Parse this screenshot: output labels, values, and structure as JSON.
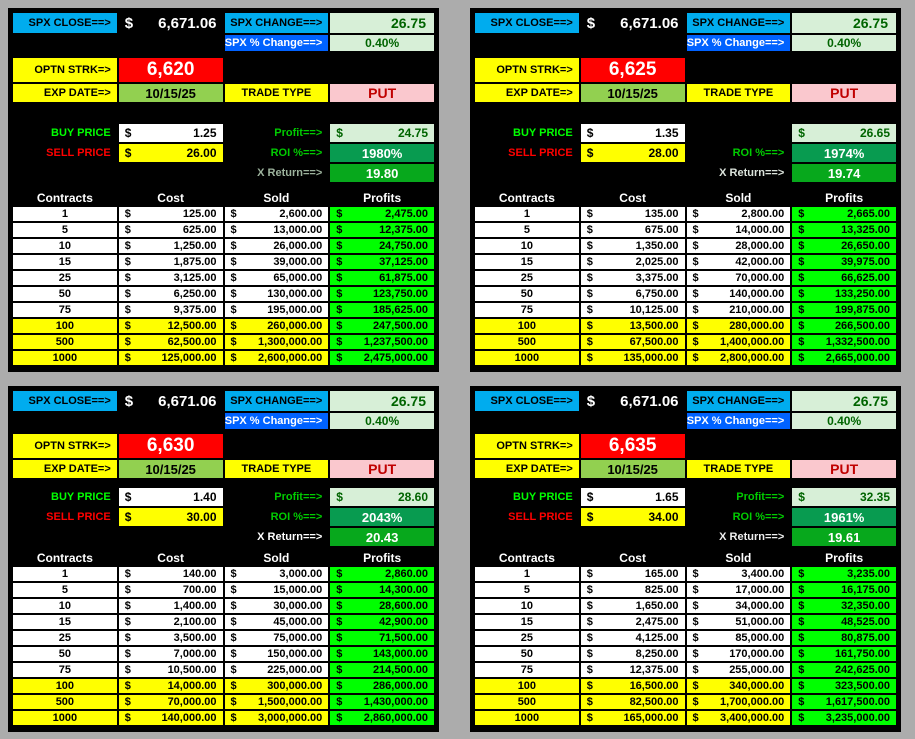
{
  "labels": {
    "spx_close": "SPX CLOSE==>",
    "spx_change": "SPX CHANGE==>",
    "spx_pct_change": "SPX % Change==>",
    "optn_strk": "OPTN STRK=>",
    "exp_date": "EXP DATE=>",
    "trade_type": "TRADE TYPE",
    "buy_price": "BUY PRICE",
    "sell_price": "SELL PRICE",
    "roi": "ROI %==>",
    "x_return": "X Return==>",
    "dollar": "$"
  },
  "table_headers": [
    "Contracts",
    "Cost",
    "Sold",
    "Profits"
  ],
  "colors": {
    "page_bg": "#ACACAC",
    "panel_bg": "#000000",
    "cyan_header": "#00ACEE",
    "blue_header": "#0062FF",
    "light_green": "#D7EFD7",
    "dark_green_text": "#006400",
    "strike_red": "#FF0000",
    "date_green": "#92D050",
    "put_pink": "#FAC8CE",
    "put_text": "#C00000",
    "yellow": "#FFFF00",
    "roi_green": "#089B50",
    "x_return_green": "#07A81C",
    "profits_green": "#00FF00",
    "buy_label_green": "#00FF00",
    "sell_label_red": "#FF0000",
    "profit_label_green": "#00CC00"
  },
  "panels": [
    {
      "id": "top-left",
      "position": "top",
      "spx_close": "6,671.06",
      "spx_change": "26.75",
      "spx_pct_change": "0.40%",
      "strike": "6,620",
      "exp_date": "10/15/25",
      "trade_type": "PUT",
      "buy_price": "1.25",
      "sell_price": "26.00",
      "profit_label": "Profit==>",
      "profit": "24.75",
      "roi": "1980%",
      "x_return": "19.80",
      "x_return_label_color": "#9DB39D",
      "rows": [
        {
          "n": "1",
          "cost": "125.00",
          "sold": "2,600.00",
          "profit": "2,475.00",
          "hl": false
        },
        {
          "n": "5",
          "cost": "625.00",
          "sold": "13,000.00",
          "profit": "12,375.00",
          "hl": false
        },
        {
          "n": "10",
          "cost": "1,250.00",
          "sold": "26,000.00",
          "profit": "24,750.00",
          "hl": false
        },
        {
          "n": "15",
          "cost": "1,875.00",
          "sold": "39,000.00",
          "profit": "37,125.00",
          "hl": false
        },
        {
          "n": "25",
          "cost": "3,125.00",
          "sold": "65,000.00",
          "profit": "61,875.00",
          "hl": false
        },
        {
          "n": "50",
          "cost": "6,250.00",
          "sold": "130,000.00",
          "profit": "123,750.00",
          "hl": false
        },
        {
          "n": "75",
          "cost": "9,375.00",
          "sold": "195,000.00",
          "profit": "185,625.00",
          "hl": false
        },
        {
          "n": "100",
          "cost": "12,500.00",
          "sold": "260,000.00",
          "profit": "247,500.00",
          "hl": true
        },
        {
          "n": "500",
          "cost": "62,500.00",
          "sold": "1,300,000.00",
          "profit": "1,237,500.00",
          "hl": true
        },
        {
          "n": "1000",
          "cost": "125,000.00",
          "sold": "2,600,000.00",
          "profit": "2,475,000.00",
          "hl": true
        }
      ]
    },
    {
      "id": "top-right",
      "position": "top",
      "spx_close": "6,671.06",
      "spx_change": "26.75",
      "spx_pct_change": "0.40%",
      "strike": "6,625",
      "exp_date": "10/15/25",
      "trade_type": "PUT",
      "buy_price": "1.35",
      "sell_price": "28.00",
      "profit_label": "",
      "profit": "26.65",
      "roi": "1974%",
      "x_return": "19.74",
      "x_return_label_color": "#DCE4DC",
      "rows": [
        {
          "n": "1",
          "cost": "135.00",
          "sold": "2,800.00",
          "profit": "2,665.00",
          "hl": false
        },
        {
          "n": "5",
          "cost": "675.00",
          "sold": "14,000.00",
          "profit": "13,325.00",
          "hl": false
        },
        {
          "n": "10",
          "cost": "1,350.00",
          "sold": "28,000.00",
          "profit": "26,650.00",
          "hl": false
        },
        {
          "n": "15",
          "cost": "2,025.00",
          "sold": "42,000.00",
          "profit": "39,975.00",
          "hl": false
        },
        {
          "n": "25",
          "cost": "3,375.00",
          "sold": "70,000.00",
          "profit": "66,625.00",
          "hl": false
        },
        {
          "n": "50",
          "cost": "6,750.00",
          "sold": "140,000.00",
          "profit": "133,250.00",
          "hl": false
        },
        {
          "n": "75",
          "cost": "10,125.00",
          "sold": "210,000.00",
          "profit": "199,875.00",
          "hl": false
        },
        {
          "n": "100",
          "cost": "13,500.00",
          "sold": "280,000.00",
          "profit": "266,500.00",
          "hl": true
        },
        {
          "n": "500",
          "cost": "67,500.00",
          "sold": "1,400,000.00",
          "profit": "1,332,500.00",
          "hl": true
        },
        {
          "n": "1000",
          "cost": "135,000.00",
          "sold": "2,800,000.00",
          "profit": "2,665,000.00",
          "hl": true
        }
      ]
    },
    {
      "id": "bottom-left",
      "position": "bottom",
      "spx_close": "6,671.06",
      "spx_change": "26.75",
      "spx_pct_change": "0.40%",
      "strike": "6,630",
      "exp_date": "10/15/25",
      "trade_type": "PUT",
      "buy_price": "1.40",
      "sell_price": "30.00",
      "profit_label": "Profit==>",
      "profit": "28.60",
      "roi": "2043%",
      "x_return": "20.43",
      "x_return_label_color": "#FFFFFF",
      "rows": [
        {
          "n": "1",
          "cost": "140.00",
          "sold": "3,000.00",
          "profit": "2,860.00",
          "hl": false
        },
        {
          "n": "5",
          "cost": "700.00",
          "sold": "15,000.00",
          "profit": "14,300.00",
          "hl": false
        },
        {
          "n": "10",
          "cost": "1,400.00",
          "sold": "30,000.00",
          "profit": "28,600.00",
          "hl": false
        },
        {
          "n": "15",
          "cost": "2,100.00",
          "sold": "45,000.00",
          "profit": "42,900.00",
          "hl": false
        },
        {
          "n": "25",
          "cost": "3,500.00",
          "sold": "75,000.00",
          "profit": "71,500.00",
          "hl": false
        },
        {
          "n": "50",
          "cost": "7,000.00",
          "sold": "150,000.00",
          "profit": "143,000.00",
          "hl": false
        },
        {
          "n": "75",
          "cost": "10,500.00",
          "sold": "225,000.00",
          "profit": "214,500.00",
          "hl": false
        },
        {
          "n": "100",
          "cost": "14,000.00",
          "sold": "300,000.00",
          "profit": "286,000.00",
          "hl": true
        },
        {
          "n": "500",
          "cost": "70,000.00",
          "sold": "1,500,000.00",
          "profit": "1,430,000.00",
          "hl": true
        },
        {
          "n": "1000",
          "cost": "140,000.00",
          "sold": "3,000,000.00",
          "profit": "2,860,000.00",
          "hl": true
        }
      ]
    },
    {
      "id": "bottom-right",
      "position": "bottom",
      "spx_close": "6,671.06",
      "spx_change": "26.75",
      "spx_pct_change": "0.40%",
      "strike": "6,635",
      "exp_date": "10/15/25",
      "trade_type": "PUT",
      "buy_price": "1.65",
      "sell_price": "34.00",
      "profit_label": "Profit==>",
      "profit": "32.35",
      "roi": "1961%",
      "x_return": "19.61",
      "x_return_label_color": "#EFEFEF",
      "rows": [
        {
          "n": "1",
          "cost": "165.00",
          "sold": "3,400.00",
          "profit": "3,235.00",
          "hl": false
        },
        {
          "n": "5",
          "cost": "825.00",
          "sold": "17,000.00",
          "profit": "16,175.00",
          "hl": false
        },
        {
          "n": "10",
          "cost": "1,650.00",
          "sold": "34,000.00",
          "profit": "32,350.00",
          "hl": false
        },
        {
          "n": "15",
          "cost": "2,475.00",
          "sold": "51,000.00",
          "profit": "48,525.00",
          "hl": false
        },
        {
          "n": "25",
          "cost": "4,125.00",
          "sold": "85,000.00",
          "profit": "80,875.00",
          "hl": false
        },
        {
          "n": "50",
          "cost": "8,250.00",
          "sold": "170,000.00",
          "profit": "161,750.00",
          "hl": false
        },
        {
          "n": "75",
          "cost": "12,375.00",
          "sold": "255,000.00",
          "profit": "242,625.00",
          "hl": false
        },
        {
          "n": "100",
          "cost": "16,500.00",
          "sold": "340,000.00",
          "profit": "323,500.00",
          "hl": true
        },
        {
          "n": "500",
          "cost": "82,500.00",
          "sold": "1,700,000.00",
          "profit": "1,617,500.00",
          "hl": true
        },
        {
          "n": "1000",
          "cost": "165,000.00",
          "sold": "3,400,000.00",
          "profit": "3,235,000.00",
          "hl": true
        }
      ]
    }
  ]
}
